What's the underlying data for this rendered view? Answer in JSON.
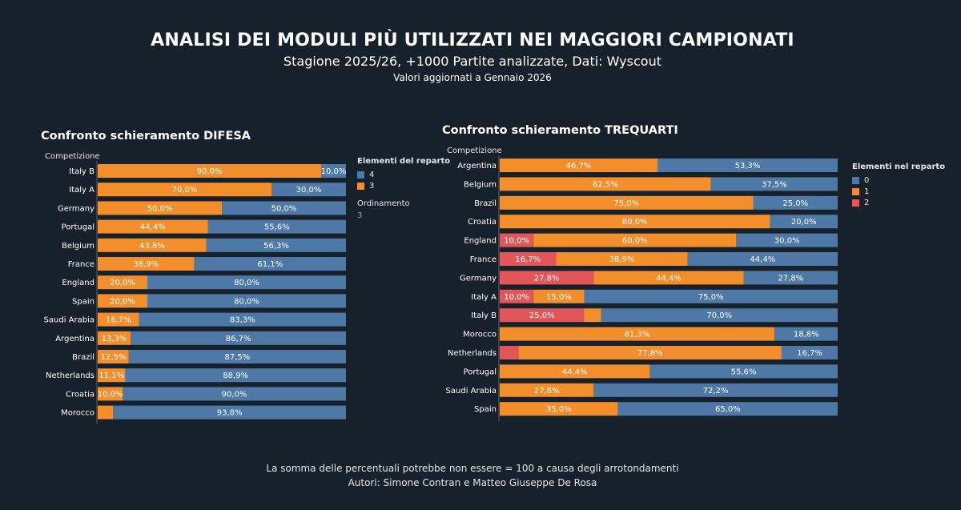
{
  "header": {
    "title": "ANALISI DEI MODULI PIÙ UTILIZZATI NEI MAGGIORI CAMPIONATI",
    "subtitle": "Stagione 2025/26, +1000 Partite analizzate, Dati: Wyscout",
    "subtitle2": "Valori aggiornati a Gennaio 2026"
  },
  "colors": {
    "c4": "#4e79a7",
    "c3": "#f28e2b",
    "c2": "#e15759",
    "background": "#17212c"
  },
  "chart_data": [
    {
      "type": "bar",
      "orientation": "horizontal",
      "stacked": true,
      "title": "Confronto schieramento DIFESA",
      "ylabel": "Competizione",
      "xlim": [
        0,
        100
      ],
      "legend": {
        "title": "Elementi del reparto",
        "position": "right",
        "items": [
          {
            "label": "4",
            "color": "#4e79a7"
          },
          {
            "label": "3",
            "color": "#f28e2b"
          }
        ],
        "sort_label": "Ordinamento",
        "sort_value": "3"
      },
      "rows": [
        {
          "category": "Italy B",
          "segments": [
            {
              "key": "3",
              "value": 90.0,
              "label": "90,0%"
            },
            {
              "key": "4",
              "value": 10.0,
              "label": "10,0%"
            }
          ]
        },
        {
          "category": "Italy A",
          "segments": [
            {
              "key": "3",
              "value": 70.0,
              "label": "70,0%"
            },
            {
              "key": "4",
              "value": 30.0,
              "label": "30,0%"
            }
          ]
        },
        {
          "category": "Germany",
          "segments": [
            {
              "key": "3",
              "value": 50.0,
              "label": "50,0%"
            },
            {
              "key": "4",
              "value": 50.0,
              "label": "50,0%"
            }
          ]
        },
        {
          "category": "Portugal",
          "segments": [
            {
              "key": "3",
              "value": 44.4,
              "label": "44,4%"
            },
            {
              "key": "4",
              "value": 55.6,
              "label": "55,6%"
            }
          ]
        },
        {
          "category": "Belgium",
          "segments": [
            {
              "key": "3",
              "value": 43.8,
              "label": "43,8%"
            },
            {
              "key": "4",
              "value": 56.3,
              "label": "56,3%"
            }
          ]
        },
        {
          "category": "France",
          "segments": [
            {
              "key": "3",
              "value": 38.9,
              "label": "38,9%"
            },
            {
              "key": "4",
              "value": 61.1,
              "label": "61,1%"
            }
          ]
        },
        {
          "category": "England",
          "segments": [
            {
              "key": "3",
              "value": 20.0,
              "label": "20,0%"
            },
            {
              "key": "4",
              "value": 80.0,
              "label": "80,0%"
            }
          ]
        },
        {
          "category": "Spain",
          "segments": [
            {
              "key": "3",
              "value": 20.0,
              "label": "20,0%"
            },
            {
              "key": "4",
              "value": 80.0,
              "label": "80,0%"
            }
          ]
        },
        {
          "category": "Saudi Arabia",
          "segments": [
            {
              "key": "3",
              "value": 16.7,
              "label": "16,7%"
            },
            {
              "key": "4",
              "value": 83.3,
              "label": "83,3%"
            }
          ]
        },
        {
          "category": "Argentina",
          "segments": [
            {
              "key": "3",
              "value": 13.3,
              "label": "13,3%"
            },
            {
              "key": "4",
              "value": 86.7,
              "label": "86,7%"
            }
          ]
        },
        {
          "category": "Brazil",
          "segments": [
            {
              "key": "3",
              "value": 12.5,
              "label": "12,5%"
            },
            {
              "key": "4",
              "value": 87.5,
              "label": "87,5%"
            }
          ]
        },
        {
          "category": "Netherlands",
          "segments": [
            {
              "key": "3",
              "value": 11.1,
              "label": "11,1%"
            },
            {
              "key": "4",
              "value": 88.9,
              "label": "88,9%"
            }
          ]
        },
        {
          "category": "Croatia",
          "segments": [
            {
              "key": "3",
              "value": 10.0,
              "label": "10,0%"
            },
            {
              "key": "4",
              "value": 90.0,
              "label": "90,0%"
            }
          ]
        },
        {
          "category": "Morocco",
          "segments": [
            {
              "key": "3",
              "value": 6.2,
              "label": ""
            },
            {
              "key": "4",
              "value": 93.8,
              "label": "93,8%"
            }
          ]
        }
      ]
    },
    {
      "type": "bar",
      "orientation": "horizontal",
      "stacked": true,
      "title": "Confronto schieramento TREQUARTI",
      "ylabel": "Competizione",
      "xlim": [
        0,
        100
      ],
      "legend": {
        "title": "Elementi nel reparto",
        "position": "right",
        "items": [
          {
            "label": "0",
            "color": "#4e79a7"
          },
          {
            "label": "1",
            "color": "#f28e2b"
          },
          {
            "label": "2",
            "color": "#e15759"
          }
        ]
      },
      "rows": [
        {
          "category": "Argentina",
          "segments": [
            {
              "key": "2",
              "value": 0,
              "label": ""
            },
            {
              "key": "1",
              "value": 46.7,
              "label": "46,7%"
            },
            {
              "key": "0",
              "value": 53.3,
              "label": "53,3%"
            }
          ]
        },
        {
          "category": "Belgium",
          "segments": [
            {
              "key": "2",
              "value": 0,
              "label": ""
            },
            {
              "key": "1",
              "value": 62.5,
              "label": "62,5%"
            },
            {
              "key": "0",
              "value": 37.5,
              "label": "37,5%"
            }
          ]
        },
        {
          "category": "Brazil",
          "segments": [
            {
              "key": "2",
              "value": 0,
              "label": ""
            },
            {
              "key": "1",
              "value": 75.0,
              "label": "75,0%"
            },
            {
              "key": "0",
              "value": 25.0,
              "label": "25,0%"
            }
          ]
        },
        {
          "category": "Croatia",
          "segments": [
            {
              "key": "2",
              "value": 0,
              "label": ""
            },
            {
              "key": "1",
              "value": 80.0,
              "label": "80,0%"
            },
            {
              "key": "0",
              "value": 20.0,
              "label": "20,0%"
            }
          ]
        },
        {
          "category": "England",
          "segments": [
            {
              "key": "2",
              "value": 10.0,
              "label": "10,0%"
            },
            {
              "key": "1",
              "value": 60.0,
              "label": "60,0%"
            },
            {
              "key": "0",
              "value": 30.0,
              "label": "30,0%"
            }
          ]
        },
        {
          "category": "France",
          "segments": [
            {
              "key": "2",
              "value": 16.7,
              "label": "16,7%"
            },
            {
              "key": "1",
              "value": 38.9,
              "label": "38,9%"
            },
            {
              "key": "0",
              "value": 44.4,
              "label": "44,4%"
            }
          ]
        },
        {
          "category": "Germany",
          "segments": [
            {
              "key": "2",
              "value": 27.8,
              "label": "27,8%"
            },
            {
              "key": "1",
              "value": 44.4,
              "label": "44,4%"
            },
            {
              "key": "0",
              "value": 27.8,
              "label": "27,8%"
            }
          ]
        },
        {
          "category": "Italy A",
          "segments": [
            {
              "key": "2",
              "value": 10.0,
              "label": "10,0%"
            },
            {
              "key": "1",
              "value": 15.0,
              "label": "15,0%"
            },
            {
              "key": "0",
              "value": 75.0,
              "label": "75,0%"
            }
          ]
        },
        {
          "category": "Italy B",
          "segments": [
            {
              "key": "2",
              "value": 25.0,
              "label": "25,0%"
            },
            {
              "key": "1",
              "value": 5.0,
              "label": ""
            },
            {
              "key": "0",
              "value": 70.0,
              "label": "70,0%"
            }
          ]
        },
        {
          "category": "Morocco",
          "segments": [
            {
              "key": "2",
              "value": 0,
              "label": ""
            },
            {
              "key": "1",
              "value": 81.3,
              "label": "81,3%"
            },
            {
              "key": "0",
              "value": 18.8,
              "label": "18,8%"
            }
          ]
        },
        {
          "category": "Netherlands",
          "segments": [
            {
              "key": "2",
              "value": 5.6,
              "label": ""
            },
            {
              "key": "1",
              "value": 77.8,
              "label": "77,8%"
            },
            {
              "key": "0",
              "value": 16.7,
              "label": "16,7%"
            }
          ]
        },
        {
          "category": "Portugal",
          "segments": [
            {
              "key": "2",
              "value": 0,
              "label": ""
            },
            {
              "key": "1",
              "value": 44.4,
              "label": "44,4%"
            },
            {
              "key": "0",
              "value": 55.6,
              "label": "55,6%"
            }
          ]
        },
        {
          "category": "Saudi Arabia",
          "segments": [
            {
              "key": "2",
              "value": 0,
              "label": ""
            },
            {
              "key": "1",
              "value": 27.8,
              "label": "27,8%"
            },
            {
              "key": "0",
              "value": 72.2,
              "label": "72,2%"
            }
          ]
        },
        {
          "category": "Spain",
          "segments": [
            {
              "key": "2",
              "value": 0,
              "label": ""
            },
            {
              "key": "1",
              "value": 35.0,
              "label": "35,0%"
            },
            {
              "key": "0",
              "value": 65.0,
              "label": "65,0%"
            }
          ]
        }
      ]
    }
  ],
  "footer": {
    "note": "La somma delle percentuali potrebbe non essere = 100 a causa degli arrotondamenti",
    "authors": "Autori: Simone Contran e Matteo Giuseppe De Rosa"
  }
}
